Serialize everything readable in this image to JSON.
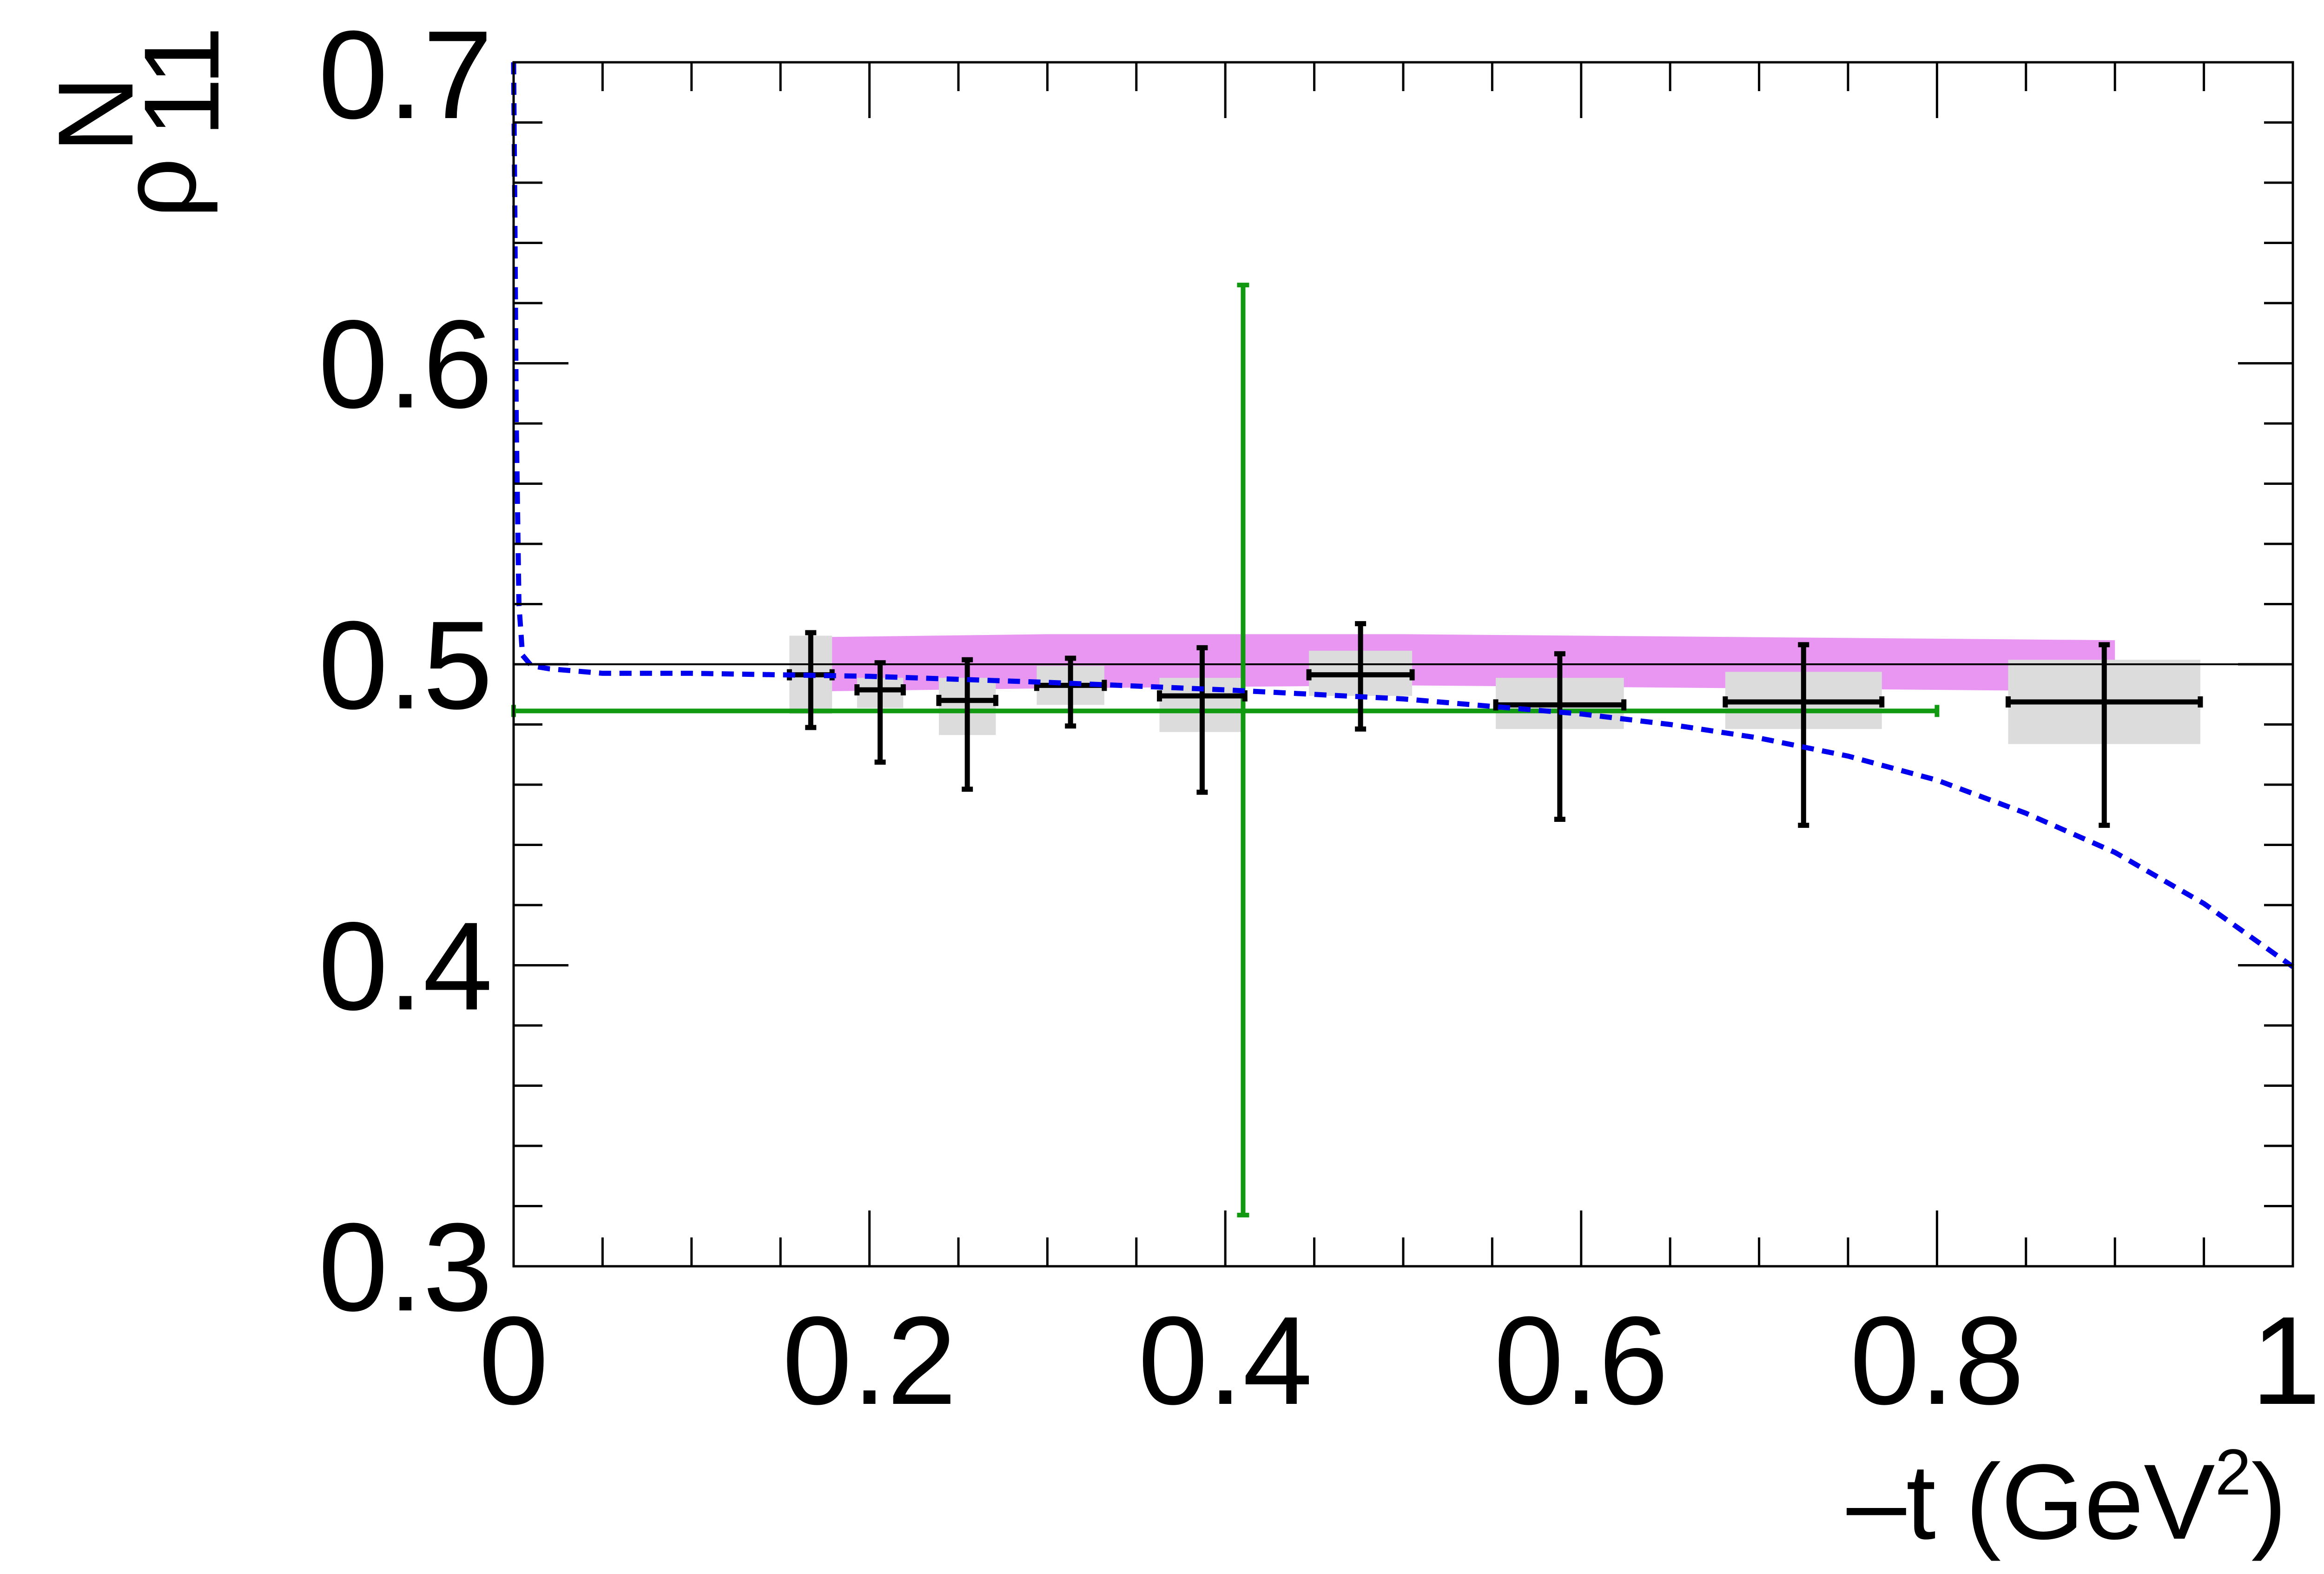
{
  "chart_data": {
    "type": "scatter",
    "xlabel": {
      "prefix": "–t (GeV",
      "sup": "2",
      "suffix": ")"
    },
    "ylabel": {
      "base": "ρ",
      "sup": "N",
      "sub": "11"
    },
    "xlim": [
      0,
      1
    ],
    "ylim": [
      0.3,
      0.7
    ],
    "x_ticks": [
      0,
      0.2,
      0.4,
      0.6,
      0.8,
      1
    ],
    "x_tick_labels": [
      "0",
      "0.2",
      "0.4",
      "0.6",
      "0.8",
      "1"
    ],
    "y_ticks": [
      0.3,
      0.4,
      0.5,
      0.6,
      0.7
    ],
    "y_tick_labels": [
      "0.3",
      "0.4",
      "0.5",
      "0.6",
      "0.7"
    ],
    "grid": false,
    "legend": "none",
    "reference_line": {
      "y": 0.5,
      "color": "#000000"
    },
    "colors": {
      "data": "#000000",
      "systematic_box": "#dcdcdc",
      "band": "#e896f2",
      "average": "#119911",
      "model": "#0000ee"
    },
    "band": {
      "x": [
        0.17,
        0.3,
        0.5,
        0.7,
        0.9
      ],
      "y_low": [
        0.491,
        0.492,
        0.493,
        0.492,
        0.491
      ],
      "y_high": [
        0.509,
        0.51,
        0.51,
        0.509,
        0.508
      ]
    },
    "average_point": {
      "x": 0.41,
      "x_low": 0.0,
      "x_high": 0.8,
      "y": 0.4845,
      "y_low": 0.317,
      "y_high": 0.626
    },
    "data_points": [
      {
        "x": 0.167,
        "xerr": 0.012,
        "y": 0.4965,
        "y_low": 0.479,
        "y_high": 0.5105,
        "sys_low": 0.4835,
        "sys_high": 0.5095
      },
      {
        "x": 0.206,
        "xerr": 0.013,
        "y": 0.4915,
        "y_low": 0.4675,
        "y_high": 0.5005,
        "sys_low": 0.4855,
        "sys_high": 0.4955
      },
      {
        "x": 0.255,
        "xerr": 0.016,
        "y": 0.488,
        "y_low": 0.4585,
        "y_high": 0.5015,
        "sys_low": 0.4765,
        "sys_high": 0.4955
      },
      {
        "x": 0.313,
        "xerr": 0.019,
        "y": 0.493,
        "y_low": 0.4795,
        "y_high": 0.502,
        "sys_low": 0.4865,
        "sys_high": 0.4995
      },
      {
        "x": 0.387,
        "xerr": 0.024,
        "y": 0.4895,
        "y_low": 0.4575,
        "y_high": 0.5055,
        "sys_low": 0.4775,
        "sys_high": 0.4955
      },
      {
        "x": 0.476,
        "xerr": 0.029,
        "y": 0.4965,
        "y_low": 0.4785,
        "y_high": 0.5135,
        "sys_low": 0.4895,
        "sys_high": 0.5045
      },
      {
        "x": 0.588,
        "xerr": 0.036,
        "y": 0.4865,
        "y_low": 0.4485,
        "y_high": 0.5035,
        "sys_low": 0.4785,
        "sys_high": 0.4955
      },
      {
        "x": 0.725,
        "xerr": 0.044,
        "y": 0.4875,
        "y_low": 0.4465,
        "y_high": 0.5065,
        "sys_low": 0.4785,
        "sys_high": 0.4975
      },
      {
        "x": 0.894,
        "xerr": 0.054,
        "y": 0.4875,
        "y_low": 0.4465,
        "y_high": 0.5065,
        "sys_low": 0.4735,
        "sys_high": 0.5015
      }
    ],
    "model_curve": {
      "x": [
        0.0,
        0.0007,
        0.0015,
        0.003,
        0.005,
        0.01,
        0.02,
        0.05,
        0.1,
        0.15,
        0.2,
        0.3,
        0.4,
        0.5,
        0.55,
        0.6,
        0.65,
        0.7,
        0.75,
        0.8,
        0.85,
        0.9,
        0.95,
        1.0
      ],
      "y": [
        0.7,
        0.65,
        0.58,
        0.52,
        0.503,
        0.4995,
        0.4985,
        0.497,
        0.497,
        0.4965,
        0.496,
        0.494,
        0.4915,
        0.4885,
        0.486,
        0.4835,
        0.48,
        0.4755,
        0.4695,
        0.4615,
        0.4505,
        0.4375,
        0.4205,
        0.3995
      ]
    }
  }
}
